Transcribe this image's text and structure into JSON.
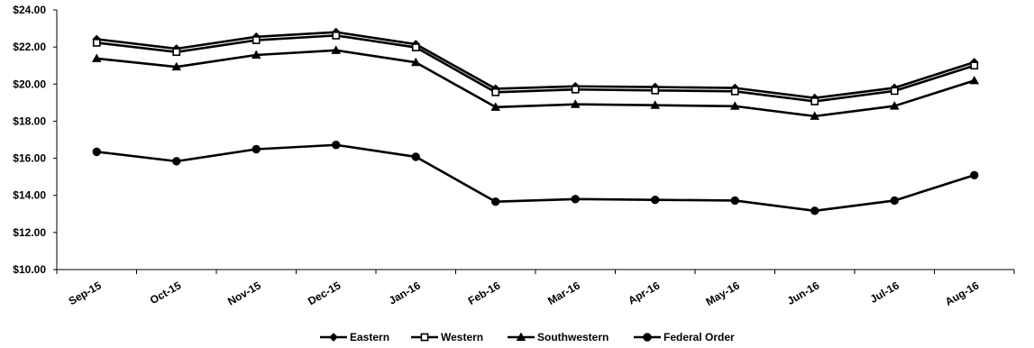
{
  "chart_data": {
    "type": "line",
    "categories": [
      "Sep-15",
      "Oct-15",
      "Nov-15",
      "Dec-15",
      "Jan-16",
      "Feb-16",
      "Mar-16",
      "Apr-16",
      "May-16",
      "Jun-16",
      "Jul-16",
      "Aug-16"
    ],
    "ylim": [
      10,
      24
    ],
    "yticks": [
      "$10.00",
      "$12.00",
      "$14.00",
      "$16.00",
      "$18.00",
      "$20.00",
      "$22.00",
      "$24.00"
    ],
    "grid": false,
    "legend_position": "bottom",
    "series": [
      {
        "name": "Eastern",
        "marker": "diamond",
        "values": [
          22.42,
          21.91,
          22.55,
          22.8,
          22.15,
          19.75,
          19.88,
          19.84,
          19.79,
          19.25,
          19.8,
          21.18
        ]
      },
      {
        "name": "Western",
        "marker": "square",
        "values": [
          22.23,
          21.73,
          22.37,
          22.62,
          21.98,
          19.56,
          19.71,
          19.66,
          19.61,
          19.07,
          19.63,
          21.0
        ]
      },
      {
        "name": "Southwestern",
        "marker": "triangle",
        "values": [
          21.38,
          20.93,
          21.57,
          21.82,
          21.17,
          18.76,
          18.91,
          18.86,
          18.81,
          18.27,
          18.82,
          20.19
        ]
      },
      {
        "name": "Federal Order",
        "marker": "circle",
        "values": [
          16.35,
          15.84,
          16.49,
          16.72,
          16.08,
          13.66,
          13.8,
          13.76,
          13.72,
          13.17,
          13.72,
          15.09
        ]
      }
    ],
    "colors": {
      "line": "#000000"
    }
  }
}
